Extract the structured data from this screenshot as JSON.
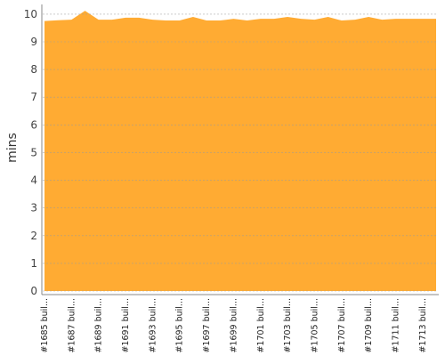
{
  "chart_data": {
    "type": "area",
    "y_label": "mins",
    "categories": [
      "#1685 buil...",
      null,
      "#1687 buil...",
      null,
      "#1689 buil...",
      null,
      "#1691 buil...",
      null,
      "#1693 buil...",
      null,
      "#1695 buil...",
      null,
      "#1697 buil...",
      null,
      "#1699 buil...",
      null,
      "#1701 buil...",
      null,
      "#1703 buil...",
      null,
      "#1705 buil...",
      null,
      "#1707 buil...",
      null,
      "#1709 buil...",
      null,
      "#1711 buil...",
      null,
      "#1713 buil...",
      null
    ],
    "values": [
      9.75,
      9.78,
      9.8,
      10.12,
      9.8,
      9.8,
      9.87,
      9.87,
      9.8,
      9.77,
      9.77,
      9.9,
      9.77,
      9.77,
      9.83,
      9.77,
      9.83,
      9.83,
      9.9,
      9.83,
      9.8,
      9.9,
      9.77,
      9.8,
      9.9,
      9.8,
      9.83,
      9.83,
      9.83,
      9.83
    ],
    "color": "#ffab33",
    "ylim": [
      0,
      10.35
    ],
    "yticks": [
      0,
      1,
      2,
      3,
      4,
      5,
      6,
      7,
      8,
      9,
      10
    ],
    "grid": true
  }
}
